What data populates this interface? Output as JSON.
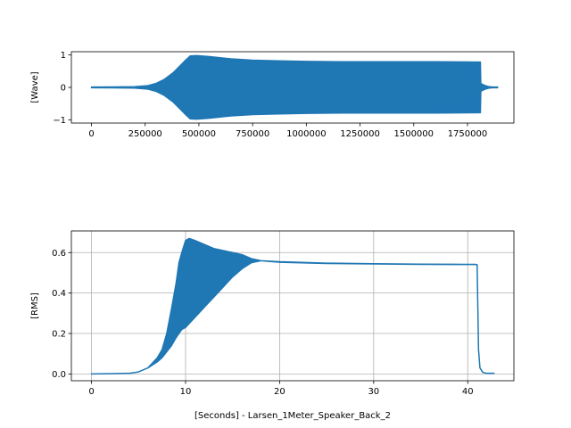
{
  "chart_data": [
    {
      "type": "line",
      "ylabel": "[Wave]",
      "xlabel": "",
      "xlim": [
        -93500,
        1966000
      ],
      "ylim": [
        -1.1,
        1.1
      ],
      "xticks": [
        0,
        250000,
        500000,
        750000,
        1000000,
        1250000,
        1500000,
        1750000
      ],
      "xtick_labels": [
        "0",
        "250000",
        "500000",
        "750000",
        "1000000",
        "1250000",
        "1500000",
        "1750000"
      ],
      "yticks": [
        1,
        0,
        -1
      ],
      "ytick_labels": [
        "1",
        "0",
        "−1"
      ],
      "grid": false,
      "color": "#1f77b4",
      "envelope": {
        "x": [
          0,
          200000,
          260000,
          300000,
          340000,
          380000,
          410000,
          440000,
          460000,
          490000,
          550000,
          650000,
          750000,
          850000,
          1000000,
          1200000,
          1400000,
          1600000,
          1810000,
          1812000,
          1830000,
          1850000,
          1870000,
          1890000
        ],
        "upper": [
          0.01,
          0.02,
          0.05,
          0.12,
          0.25,
          0.45,
          0.65,
          0.85,
          0.97,
          0.98,
          0.95,
          0.88,
          0.84,
          0.82,
          0.8,
          0.79,
          0.79,
          0.79,
          0.78,
          0.12,
          0.06,
          0.02,
          0.01,
          0.01
        ],
        "lower": [
          -0.01,
          -0.02,
          -0.05,
          -0.12,
          -0.25,
          -0.45,
          -0.65,
          -0.85,
          -0.97,
          -0.98,
          -0.95,
          -0.88,
          -0.84,
          -0.82,
          -0.8,
          -0.79,
          -0.79,
          -0.79,
          -0.78,
          -0.12,
          -0.06,
          -0.02,
          -0.01,
          -0.01
        ]
      }
    },
    {
      "type": "line",
      "ylabel": "[RMS]",
      "xlabel": "[Seconds] - Larsen_1Meter_Speaker_Back_2",
      "xlim": [
        -2.14,
        44.91
      ],
      "ylim": [
        -0.03367,
        0.70707
      ],
      "xticks": [
        0,
        10,
        20,
        30,
        40
      ],
      "xtick_labels": [
        "0",
        "10",
        "20",
        "30",
        "40"
      ],
      "yticks": [
        0.0,
        0.2,
        0.4,
        0.6
      ],
      "ytick_labels": [
        "0.0",
        "0.2",
        "0.4",
        "0.6"
      ],
      "grid": true,
      "color": "#1f77b4",
      "envelope": {
        "x": [
          0,
          4.0,
          5.0,
          6.0,
          7.0,
          7.5,
          8.0,
          8.5,
          9.0,
          9.3,
          9.6,
          10.0,
          10.4,
          11.0,
          12.0,
          13.0,
          14.0,
          15.0,
          16.0,
          17.0,
          18.0,
          20.0,
          25.0,
          30.0,
          35.0,
          40.0,
          40.8,
          41.0,
          41.15,
          41.3,
          41.6,
          42.0,
          42.8
        ],
        "upper": [
          0.0,
          0.003,
          0.01,
          0.03,
          0.08,
          0.12,
          0.2,
          0.32,
          0.45,
          0.55,
          0.6,
          0.66,
          0.67,
          0.66,
          0.64,
          0.62,
          0.61,
          0.6,
          0.59,
          0.57,
          0.56,
          0.555,
          0.548,
          0.545,
          0.543,
          0.542,
          0.542,
          0.54,
          0.12,
          0.03,
          0.008,
          0.003,
          0.003
        ],
        "lower": [
          0.0,
          0.003,
          0.01,
          0.03,
          0.06,
          0.08,
          0.11,
          0.14,
          0.18,
          0.2,
          0.22,
          0.23,
          0.25,
          0.28,
          0.33,
          0.38,
          0.43,
          0.48,
          0.52,
          0.55,
          0.56,
          0.552,
          0.546,
          0.544,
          0.542,
          0.541,
          0.541,
          0.54,
          0.12,
          0.03,
          0.008,
          0.003,
          0.003
        ]
      }
    }
  ]
}
